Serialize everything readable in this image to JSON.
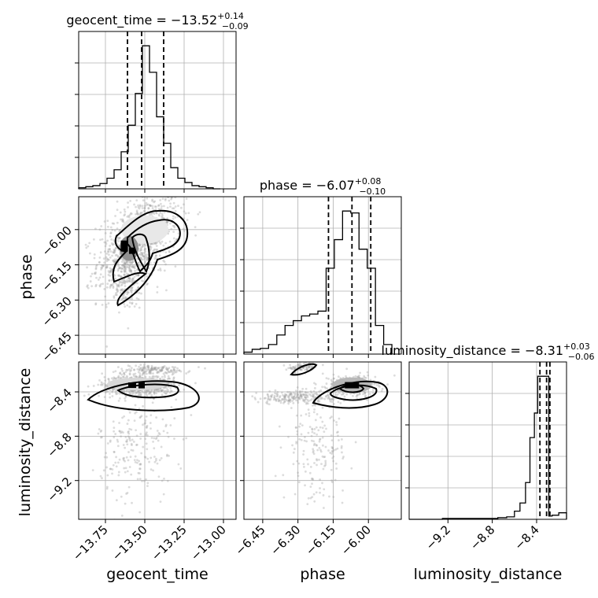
{
  "chart_data": {
    "type": "corner",
    "parameters": [
      "geocent_time",
      "phase",
      "luminosity_distance"
    ],
    "titles": [
      {
        "param": "geocent_time",
        "median": "−13.52",
        "plus": "+0.14",
        "minus": "−0.09"
      },
      {
        "param": "phase",
        "median": "−6.07",
        "plus": "+0.08",
        "minus": "−0.10"
      },
      {
        "param": "luminosity_distance",
        "median": "−8.31",
        "plus": "+0.03",
        "minus": "−0.06"
      }
    ],
    "axes": {
      "geocent_time": {
        "range": [
          -13.92,
          -12.92
        ],
        "ticks": [
          -13.75,
          -13.5,
          -13.25,
          -13.0
        ],
        "tick_labels": [
          "−13.75",
          "−13.50",
          "−13.25",
          "−13.00"
        ]
      },
      "phase": {
        "range": [
          -6.53,
          -5.86
        ],
        "ticks": [
          -6.45,
          -6.3,
          -6.15,
          -6.0
        ],
        "tick_labels": [
          "−6.45",
          "−6.30",
          "−6.15",
          "−6.00"
        ]
      },
      "luminosity_distance": {
        "range": [
          -9.55,
          -8.13
        ],
        "ticks": [
          -9.2,
          -8.8,
          -8.4
        ],
        "tick_labels": [
          "−9.2",
          "−8.8",
          "−8.4"
        ]
      }
    },
    "histograms": [
      {
        "param": "geocent_time",
        "edges": [
          -13.92,
          -13.875,
          -13.83,
          -13.785,
          -13.74,
          -13.695,
          -13.65,
          -13.605,
          -13.56,
          -13.515,
          -13.47,
          -13.425,
          -13.38,
          -13.335,
          -13.29,
          -13.245,
          -13.2,
          -13.155,
          -13.11,
          -13.065,
          -13.02
        ],
        "counts": [
          1,
          2,
          3,
          5,
          10,
          18,
          35,
          60,
          90,
          135,
          110,
          68,
          43,
          20,
          10,
          6,
          3,
          2,
          1,
          0
        ],
        "quantiles": [
          -13.61,
          -13.52,
          -13.38
        ]
      },
      {
        "param": "phase",
        "edges": [
          -6.53,
          -6.495,
          -6.46,
          -6.425,
          -6.39,
          -6.355,
          -6.32,
          -6.285,
          -6.25,
          -6.215,
          -6.18,
          -6.145,
          -6.11,
          -6.075,
          -6.04,
          -6.005,
          -5.97,
          -5.935,
          -5.9
        ],
        "counts": [
          2,
          5,
          6,
          10,
          20,
          30,
          35,
          40,
          42,
          45,
          90,
          120,
          150,
          148,
          110,
          90,
          30,
          10
        ],
        "quantiles": [
          -6.17,
          -6.07,
          -5.99
        ]
      },
      {
        "param": "luminosity_distance",
        "edges": [
          -9.55,
          -9.45,
          -9.35,
          -9.25,
          -9.15,
          -9.05,
          -8.95,
          -8.85,
          -8.75,
          -8.67,
          -8.6,
          -8.55,
          -8.5,
          -8.46,
          -8.42,
          -8.39,
          -8.37,
          -8.35,
          -8.33,
          -8.31,
          -8.29,
          -8.26,
          -8.2,
          -8.13
        ],
        "counts": [
          0,
          0,
          0,
          1,
          1,
          1,
          1,
          1,
          2,
          3,
          10,
          20,
          45,
          100,
          130,
          175,
          175,
          175,
          175,
          175,
          4,
          5,
          8
        ],
        "quantiles": [
          -8.37,
          -8.31,
          -8.28
        ]
      }
    ],
    "scatter_2d": [
      {
        "x": "geocent_time",
        "y": "phase",
        "center": [
          -13.54,
          -6.05
        ],
        "core": [
          -13.6,
          -6.08
        ]
      },
      {
        "x": "geocent_time",
        "y": "luminosity_distance",
        "center": [
          -13.53,
          -8.34
        ]
      },
      {
        "x": "phase",
        "y": "luminosity_distance",
        "center": [
          -6.07,
          -8.34
        ]
      }
    ]
  }
}
